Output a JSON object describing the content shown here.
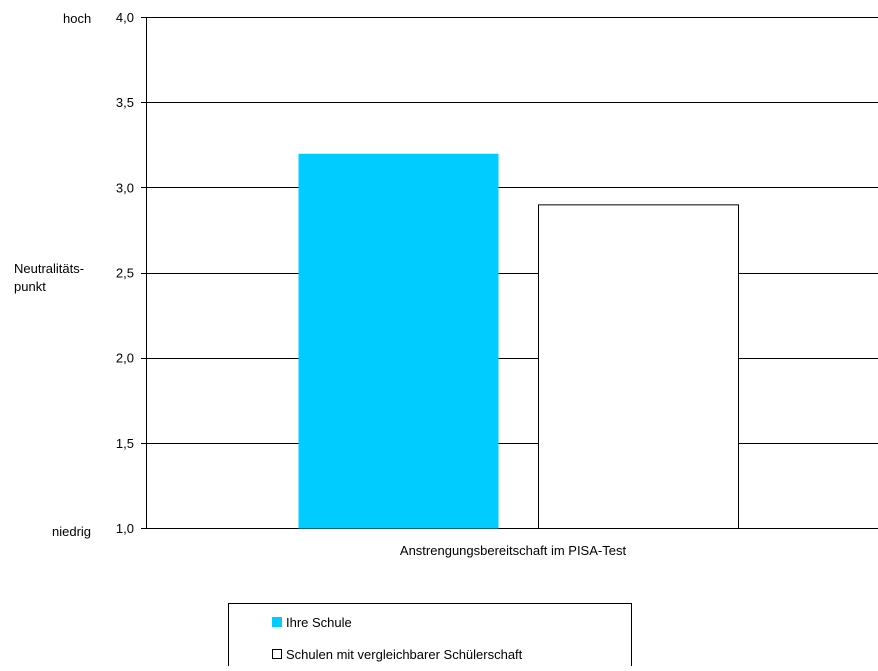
{
  "chart_data": {
    "type": "bar",
    "xlabel": "Anstrengungsbereitschaft im PISA-Test",
    "ylim": [
      1.0,
      4.0
    ],
    "y_ticks": [
      1.0,
      1.5,
      2.0,
      2.5,
      3.0,
      3.5,
      4.0
    ],
    "y_tick_labels": [
      "1,0",
      "1,5",
      "2,0",
      "2,5",
      "3,0",
      "3,5",
      "4,0"
    ],
    "y_annotations": {
      "top": "hoch",
      "bottom": "niedrig",
      "middle_line1": "Neutralitäts-",
      "middle_line2": "punkt"
    },
    "grid": true,
    "legend_position": "bottom",
    "series": [
      {
        "name": "Ihre Schule",
        "value": 3.2,
        "color": "#00CCFF"
      },
      {
        "name": "Schulen mit vergleichbarer Schülerschaft",
        "value": 2.9,
        "color": "#FFFFFF"
      }
    ]
  }
}
